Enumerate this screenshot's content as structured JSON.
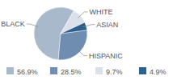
{
  "chart_data": {
    "type": "pie",
    "categories": [
      "BLACK",
      "HISPANIC",
      "WHITE",
      "ASIAN"
    ],
    "values": [
      56.9,
      28.5,
      9.7,
      4.9
    ],
    "value_labels": [
      "56.9%",
      "28.5%",
      "9.7%",
      "4.9%"
    ],
    "colors": [
      "#a9b9cc",
      "#6e8db1",
      "#dbe1ea",
      "#2f5f8a"
    ],
    "legend": "bottom"
  }
}
